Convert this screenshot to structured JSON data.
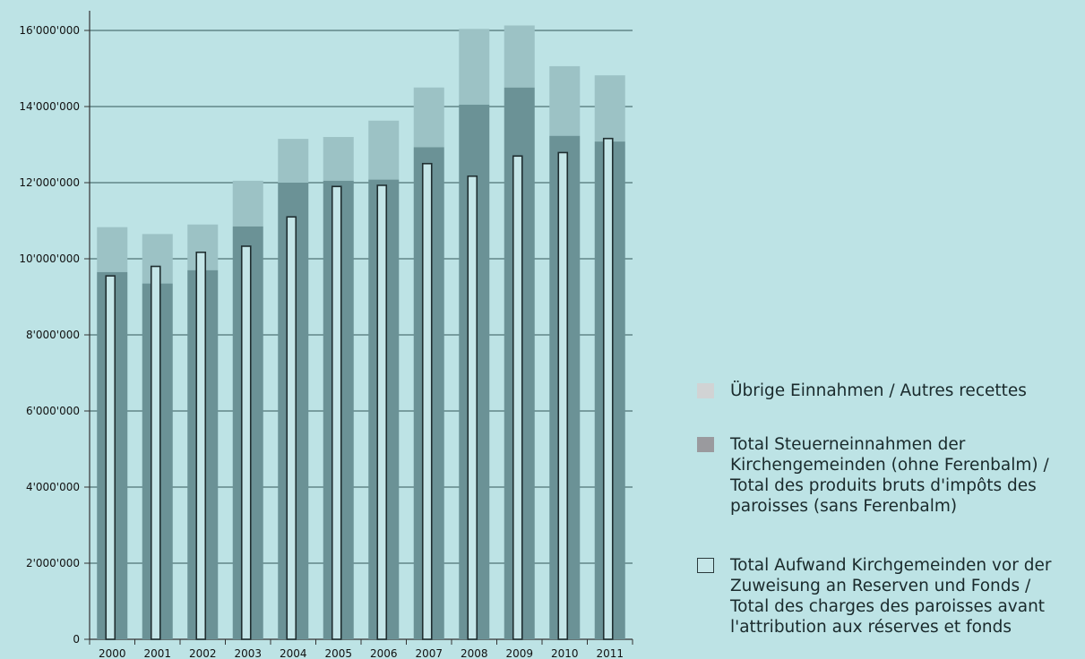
{
  "chart_data": {
    "type": "bar",
    "categories": [
      "2000",
      "2001",
      "2002",
      "2003",
      "2004",
      "2005",
      "2006",
      "2007",
      "2008",
      "2009",
      "2010",
      "2011"
    ],
    "ylim": [
      0,
      16500000
    ],
    "y_ticks": [
      0,
      2000000,
      4000000,
      6000000,
      8000000,
      10000000,
      12000000,
      14000000,
      16000000
    ],
    "y_tick_labels": [
      "0",
      "2'000'000",
      "4'000'000",
      "6'000'000",
      "8'000'000",
      "10'000'000",
      "12'000'000",
      "14'000'000",
      "16'000'000"
    ],
    "grid": true,
    "legend_position": "right",
    "series": [
      {
        "name": "Übrige Einnahmen / Autres recettes",
        "color": "#9cc2c5",
        "values": [
          1180000,
          1300000,
          1200000,
          1200000,
          1150000,
          1150000,
          1550000,
          1570000,
          1990000,
          1630000,
          1830000,
          1740000
        ]
      },
      {
        "name": "Total Steuerneinnahmen der Kirchengemeinden (ohne Ferenbalm) / Total des produits bruts d'impôts des paroisses (sans Ferenbalm)",
        "color": "#6b9296",
        "values": [
          9650000,
          9350000,
          9700000,
          10850000,
          12000000,
          12050000,
          12080000,
          12930000,
          14050000,
          14500000,
          13230000,
          13080000
        ]
      },
      {
        "name": "Total Aufwand Kirchgemeinden vor der Zuweisung an Reserven und Fonds / Total des charges des paroisses avant l'attribution aux réserves et fonds",
        "color": "#c5e6e8",
        "values": [
          9550000,
          9800000,
          10170000,
          10330000,
          11100000,
          11900000,
          11930000,
          12500000,
          12170000,
          12700000,
          12790000,
          13160000
        ]
      }
    ]
  },
  "legend": {
    "items": [
      {
        "label": "Übrige Einnahmen / Autres recettes",
        "color": "#d1d3d4"
      },
      {
        "label": "Total Steuerneinnahmen der\nKirchengemeinden (ohne Ferenbalm) /\nTotal des produits bruts d'impôts des\nparoisses (sans Ferenbalm)",
        "color": "#9a9a9e"
      },
      {
        "label": "Total Aufwand Kirchgemeinden vor der\nZuweisung an Reserven und Fonds /\nTotal des charges des paroisses avant\nl'attribution aux réserves et fonds",
        "color": "#c5e6e8"
      }
    ]
  }
}
